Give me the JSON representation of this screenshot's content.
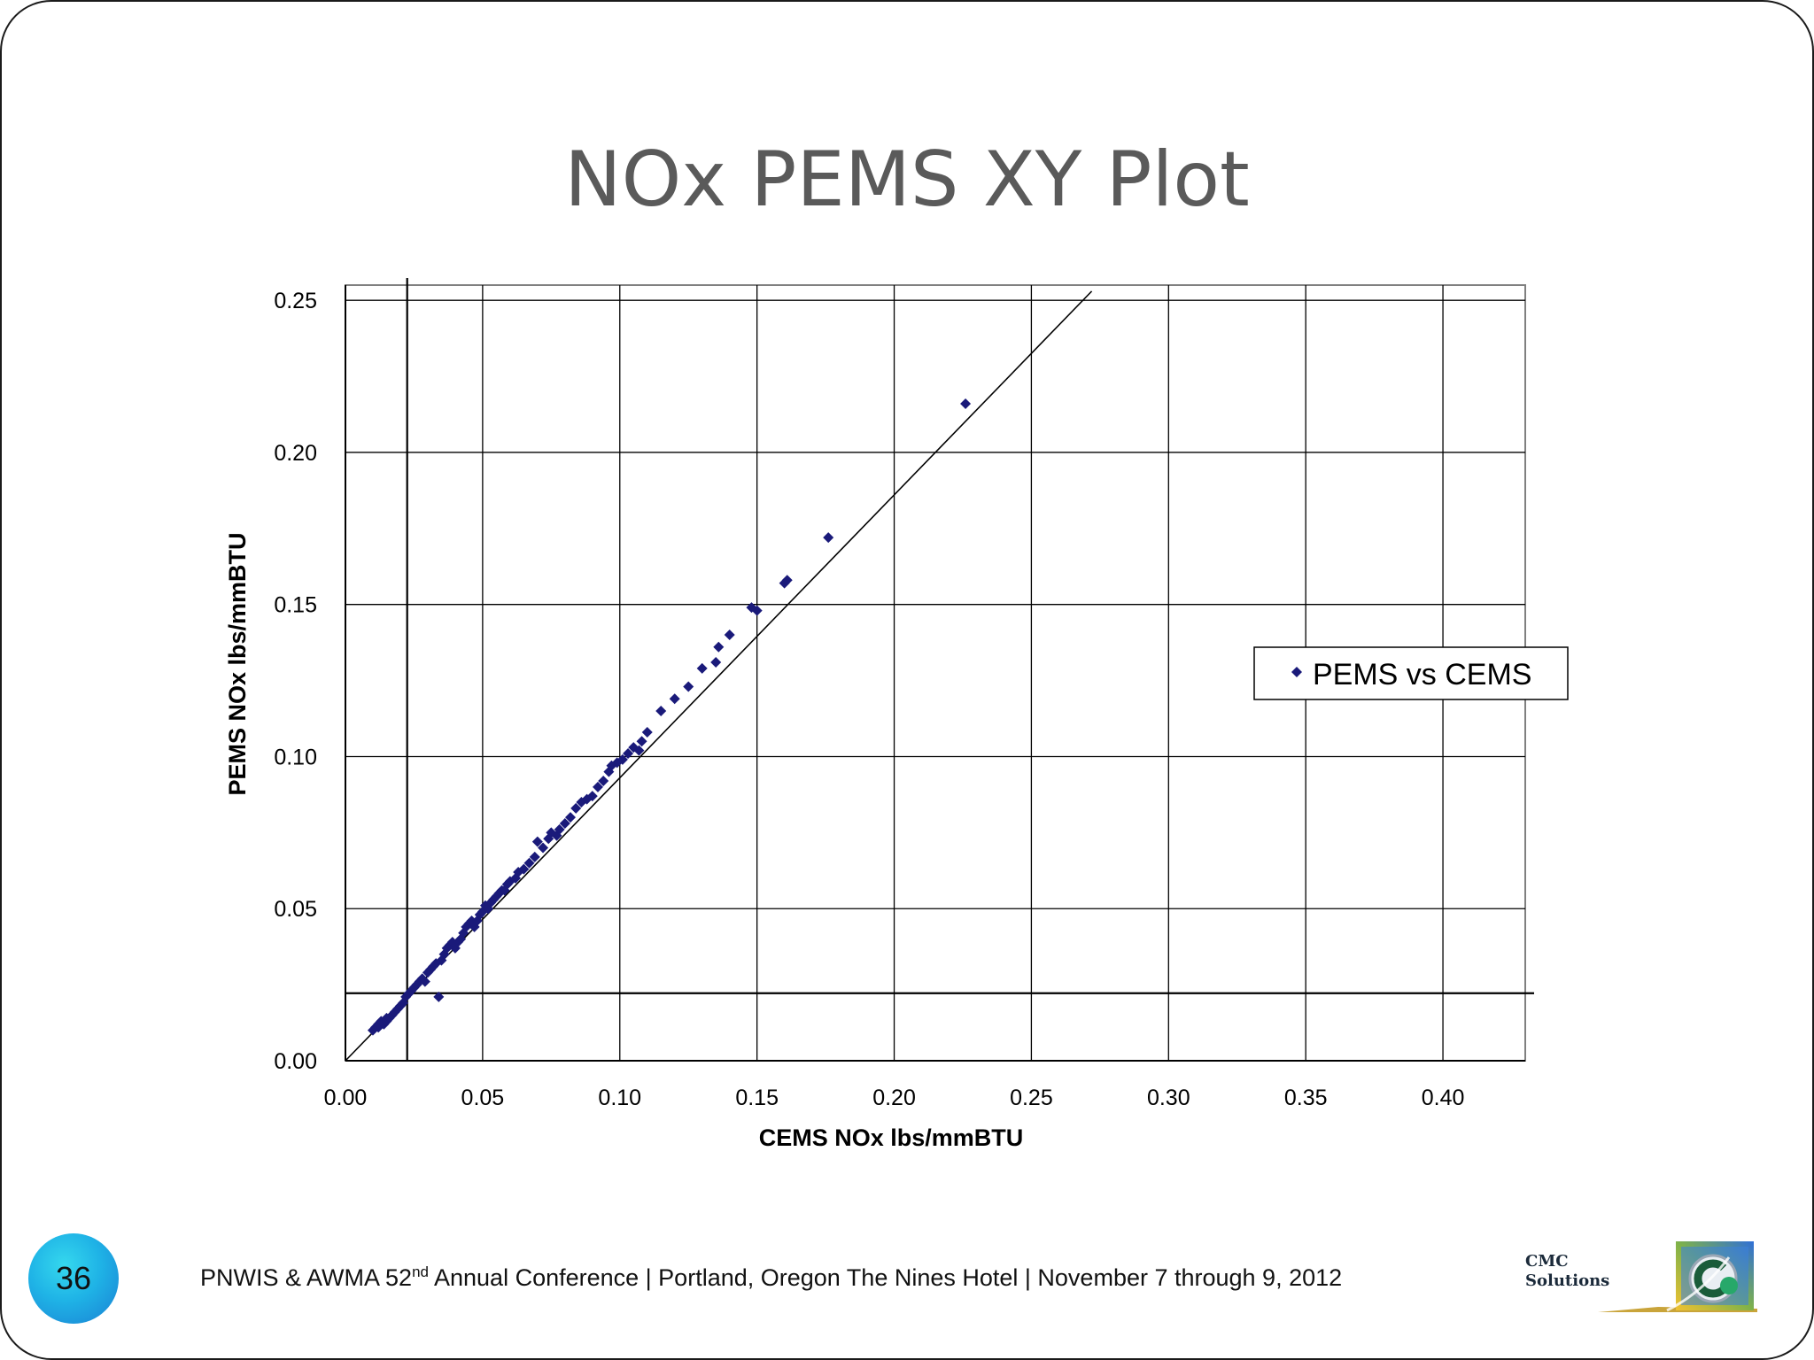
{
  "slide": {
    "title": "NOx PEMS XY Plot",
    "page_number": "36",
    "footer_pre": "PNWIS & AWMA 52",
    "footer_sup": "nd",
    "footer_post": " Annual Conference | Portland, Oregon The Nines Hotel | November 7 through 9, 2012",
    "logo_line1": "CMC",
    "logo_line2": "Solutions"
  },
  "colors": {
    "marker": "#1a1a7a",
    "grid": "#000000",
    "title": "#5a5a5a",
    "badge": "#1fb3e6"
  },
  "chart_data": {
    "type": "scatter",
    "title": "",
    "xlabel": "CEMS NOx lbs/mmBTU",
    "ylabel": "PEMS NOx lbs/mmBTU",
    "xlim": [
      0.0,
      0.43
    ],
    "ylim": [
      0.0,
      0.255
    ],
    "xticks": [
      0.0,
      0.05,
      0.1,
      0.15,
      0.2,
      0.25,
      0.3,
      0.35,
      0.4
    ],
    "xtick_labels": [
      "0.00",
      "0.05",
      "0.10",
      "0.15",
      "0.20",
      "0.25",
      "0.30",
      "0.35",
      "0.40"
    ],
    "yticks": [
      0.0,
      0.05,
      0.1,
      0.15,
      0.2,
      0.25
    ],
    "ytick_labels": [
      "0.00",
      "0.05",
      "0.10",
      "0.15",
      "0.20",
      "0.25"
    ],
    "grid": true,
    "legend": {
      "position": "right",
      "entries": [
        "PEMS vs CEMS"
      ]
    },
    "reference_lines": {
      "vertical_x": 0.0225,
      "horizontal_y": 0.0222,
      "diagonal": [
        [
          0.0,
          0.0
        ],
        [
          0.272,
          0.253
        ]
      ]
    },
    "series": [
      {
        "name": "PEMS vs CEMS",
        "points": [
          [
            0.01,
            0.01
          ],
          [
            0.011,
            0.011
          ],
          [
            0.012,
            0.011
          ],
          [
            0.012,
            0.012
          ],
          [
            0.013,
            0.012
          ],
          [
            0.013,
            0.013
          ],
          [
            0.014,
            0.012
          ],
          [
            0.014,
            0.013
          ],
          [
            0.015,
            0.013
          ],
          [
            0.015,
            0.014
          ],
          [
            0.016,
            0.014
          ],
          [
            0.017,
            0.015
          ],
          [
            0.018,
            0.016
          ],
          [
            0.019,
            0.017
          ],
          [
            0.02,
            0.018
          ],
          [
            0.021,
            0.019
          ],
          [
            0.022,
            0.021
          ],
          [
            0.023,
            0.022
          ],
          [
            0.024,
            0.023
          ],
          [
            0.025,
            0.024
          ],
          [
            0.026,
            0.025
          ],
          [
            0.027,
            0.026
          ],
          [
            0.028,
            0.027
          ],
          [
            0.029,
            0.026
          ],
          [
            0.03,
            0.029
          ],
          [
            0.031,
            0.03
          ],
          [
            0.032,
            0.031
          ],
          [
            0.033,
            0.032
          ],
          [
            0.034,
            0.021
          ],
          [
            0.035,
            0.033
          ],
          [
            0.036,
            0.035
          ],
          [
            0.037,
            0.037
          ],
          [
            0.038,
            0.038
          ],
          [
            0.039,
            0.039
          ],
          [
            0.04,
            0.037
          ],
          [
            0.041,
            0.039
          ],
          [
            0.042,
            0.04
          ],
          [
            0.043,
            0.042
          ],
          [
            0.044,
            0.044
          ],
          [
            0.045,
            0.045
          ],
          [
            0.046,
            0.046
          ],
          [
            0.047,
            0.044
          ],
          [
            0.048,
            0.046
          ],
          [
            0.049,
            0.048
          ],
          [
            0.05,
            0.049
          ],
          [
            0.051,
            0.051
          ],
          [
            0.052,
            0.05
          ],
          [
            0.053,
            0.052
          ],
          [
            0.054,
            0.053
          ],
          [
            0.055,
            0.054
          ],
          [
            0.056,
            0.055
          ],
          [
            0.057,
            0.056
          ],
          [
            0.058,
            0.056
          ],
          [
            0.059,
            0.058
          ],
          [
            0.06,
            0.059
          ],
          [
            0.062,
            0.06
          ],
          [
            0.063,
            0.062
          ],
          [
            0.065,
            0.063
          ],
          [
            0.067,
            0.065
          ],
          [
            0.069,
            0.067
          ],
          [
            0.07,
            0.072
          ],
          [
            0.072,
            0.07
          ],
          [
            0.074,
            0.073
          ],
          [
            0.075,
            0.075
          ],
          [
            0.077,
            0.074
          ],
          [
            0.078,
            0.076
          ],
          [
            0.08,
            0.078
          ],
          [
            0.082,
            0.08
          ],
          [
            0.084,
            0.083
          ],
          [
            0.086,
            0.085
          ],
          [
            0.088,
            0.086
          ],
          [
            0.09,
            0.087
          ],
          [
            0.092,
            0.09
          ],
          [
            0.094,
            0.092
          ],
          [
            0.096,
            0.095
          ],
          [
            0.097,
            0.097
          ],
          [
            0.099,
            0.098
          ],
          [
            0.101,
            0.099
          ],
          [
            0.103,
            0.101
          ],
          [
            0.105,
            0.103
          ],
          [
            0.107,
            0.102
          ],
          [
            0.108,
            0.105
          ],
          [
            0.11,
            0.108
          ],
          [
            0.115,
            0.115
          ],
          [
            0.12,
            0.119
          ],
          [
            0.125,
            0.123
          ],
          [
            0.13,
            0.129
          ],
          [
            0.135,
            0.131
          ],
          [
            0.136,
            0.136
          ],
          [
            0.14,
            0.14
          ],
          [
            0.148,
            0.149
          ],
          [
            0.15,
            0.148
          ],
          [
            0.16,
            0.157
          ],
          [
            0.161,
            0.158
          ],
          [
            0.176,
            0.172
          ],
          [
            0.226,
            0.216
          ]
        ]
      }
    ]
  }
}
